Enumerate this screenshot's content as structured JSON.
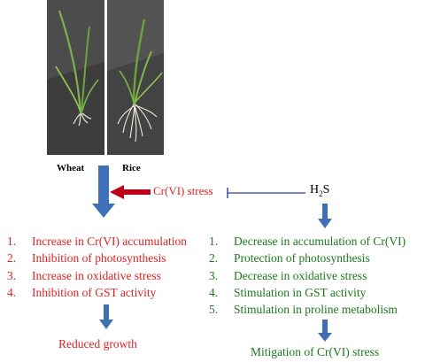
{
  "plants": {
    "wheat_label": "Wheat",
    "rice_label": "Rice"
  },
  "stress": {
    "label": "Cr(VI) stress"
  },
  "h2s": {
    "base": "H",
    "sub": "2",
    "tail": "S"
  },
  "effects_without_h2s": {
    "items": [
      {
        "num": "1.",
        "text": "Increase in Cr(VI) accumulation"
      },
      {
        "num": "2.",
        "text": "Inhibition of photosynthesis"
      },
      {
        "num": "3.",
        "text": "Increase in oxidative stress"
      },
      {
        "num": "4.",
        "text": "Inhibition of GST activity"
      }
    ],
    "outcome": "Reduced growth"
  },
  "effects_with_h2s": {
    "items": [
      {
        "num": "1.",
        "text": "Decrease in accumulation of Cr(VI)"
      },
      {
        "num": "2.",
        "text": "Protection of photosynthesis"
      },
      {
        "num": "3.",
        "text": "Decrease in oxidative stress"
      },
      {
        "num": "4.",
        "text": "Stimulation in GST activity"
      },
      {
        "num": "5.",
        "text": "Stimulation in proline metabolism"
      }
    ],
    "outcome": "Mitigation of Cr(VI) stress"
  },
  "colors": {
    "negative": "#e02020",
    "positive": "#1a7a1a",
    "arrow_blue": "#3f6fb5",
    "arrow_red": "#c0001a",
    "inhibitor_line": "#2a3f9a"
  }
}
